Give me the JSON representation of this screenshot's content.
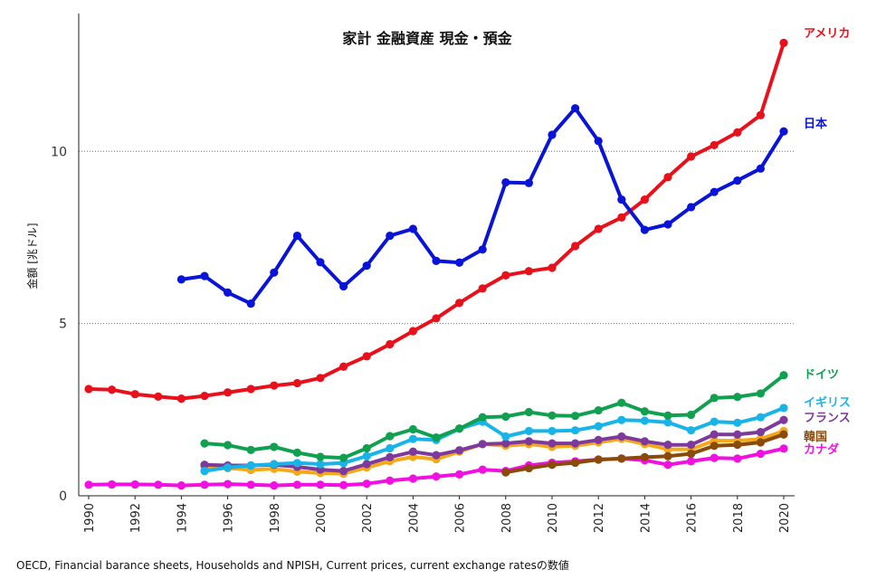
{
  "chart_data": {
    "type": "line",
    "title": "家計 金融資産 現金・預金",
    "ylabel": "金額 [兆ドル]",
    "xlabel": "",
    "xlim": [
      1990,
      2020
    ],
    "ylim": [
      0,
      14
    ],
    "yticks": [
      0,
      5,
      10
    ],
    "xticks": [
      1990,
      1992,
      1994,
      1996,
      1998,
      2000,
      2002,
      2004,
      2006,
      2008,
      2010,
      2012,
      2014,
      2016,
      2018,
      2020
    ],
    "grid": "horizontal-dotted",
    "legend": "right-end-labels",
    "series": [
      {
        "name": "アメリカ",
        "color": "#e8101a",
        "x": [
          1990,
          1991,
          1992,
          1993,
          1994,
          1995,
          1996,
          1997,
          1998,
          1999,
          2000,
          2001,
          2002,
          2003,
          2004,
          2005,
          2006,
          2007,
          2008,
          2009,
          2010,
          2011,
          2012,
          2013,
          2014,
          2015,
          2016,
          2017,
          2018,
          2019,
          2020
        ],
        "y": [
          3.1,
          3.08,
          2.95,
          2.88,
          2.82,
          2.9,
          3.0,
          3.1,
          3.2,
          3.27,
          3.42,
          3.75,
          4.05,
          4.4,
          4.78,
          5.15,
          5.6,
          6.02,
          6.4,
          6.52,
          6.62,
          7.25,
          7.75,
          8.08,
          8.6,
          9.25,
          9.85,
          10.18,
          10.55,
          11.05,
          13.15
        ]
      },
      {
        "name": "日本",
        "color": "#0a14d8",
        "x": [
          1994,
          1995,
          1996,
          1997,
          1998,
          1999,
          2000,
          2001,
          2002,
          2003,
          2004,
          2005,
          2006,
          2007,
          2008,
          2009,
          2010,
          2011,
          2012,
          2013,
          2014,
          2015,
          2016,
          2017,
          2018,
          2019,
          2020
        ],
        "y": [
          6.28,
          6.38,
          5.9,
          5.58,
          6.48,
          7.55,
          6.78,
          6.08,
          6.68,
          7.55,
          7.75,
          6.82,
          6.77,
          7.15,
          9.1,
          9.08,
          10.48,
          11.25,
          10.3,
          8.6,
          7.72,
          7.88,
          8.38,
          8.82,
          9.15,
          9.5,
          10.58
        ]
      },
      {
        "name": "ドイツ",
        "color": "#10a050",
        "x": [
          1995,
          1996,
          1997,
          1998,
          1999,
          2000,
          2001,
          2002,
          2003,
          2004,
          2005,
          2006,
          2007,
          2008,
          2009,
          2010,
          2011,
          2012,
          2013,
          2014,
          2015,
          2016,
          2017,
          2018,
          2019,
          2020
        ],
        "y": [
          1.52,
          1.47,
          1.33,
          1.42,
          1.25,
          1.13,
          1.1,
          1.38,
          1.73,
          1.93,
          1.69,
          1.95,
          2.28,
          2.3,
          2.43,
          2.33,
          2.32,
          2.48,
          2.7,
          2.45,
          2.33,
          2.35,
          2.84,
          2.87,
          2.97,
          3.5
        ]
      },
      {
        "name": "イギリス",
        "color": "#18b4e8",
        "x": [
          1995,
          1996,
          1997,
          1998,
          1999,
          2000,
          2001,
          2002,
          2003,
          2004,
          2005,
          2006,
          2007,
          2008,
          2009,
          2010,
          2011,
          2012,
          2013,
          2014,
          2015,
          2016,
          2017,
          2018,
          2019,
          2020
        ],
        "y": [
          0.72,
          0.82,
          0.88,
          0.92,
          0.95,
          0.92,
          0.95,
          1.15,
          1.38,
          1.65,
          1.62,
          1.95,
          2.15,
          1.72,
          1.88,
          1.88,
          1.9,
          2.02,
          2.2,
          2.18,
          2.13,
          1.9,
          2.15,
          2.12,
          2.28,
          2.55
        ]
      },
      {
        "name": "フランス",
        "color": "#7d3a9c",
        "x": [
          1995,
          1996,
          1997,
          1998,
          1999,
          2000,
          2001,
          2002,
          2003,
          2004,
          2005,
          2006,
          2007,
          2008,
          2009,
          2010,
          2011,
          2012,
          2013,
          2014,
          2015,
          2016,
          2017,
          2018,
          2019,
          2020
        ],
        "y": [
          0.9,
          0.88,
          0.88,
          0.9,
          0.84,
          0.76,
          0.72,
          0.92,
          1.12,
          1.28,
          1.18,
          1.32,
          1.5,
          1.52,
          1.58,
          1.52,
          1.52,
          1.62,
          1.72,
          1.58,
          1.48,
          1.48,
          1.78,
          1.78,
          1.85,
          2.2
        ]
      },
      {
        "name": "韓国",
        "color": "#8a4a08",
        "x": [
          2008,
          2009,
          2010,
          2011,
          2012,
          2013,
          2014,
          2015,
          2016,
          2017,
          2018,
          2019,
          2020
        ],
        "y": [
          0.68,
          0.8,
          0.9,
          0.96,
          1.05,
          1.08,
          1.12,
          1.15,
          1.22,
          1.45,
          1.48,
          1.55,
          1.78
        ]
      },
      {
        "name": "カナダ",
        "color": "#f010e0",
        "x": [
          1990,
          1991,
          1992,
          1993,
          1994,
          1995,
          1996,
          1997,
          1998,
          1999,
          2000,
          2001,
          2002,
          2003,
          2004,
          2005,
          2006,
          2007,
          2008,
          2009,
          2010,
          2011,
          2012,
          2013,
          2014,
          2015,
          2016,
          2017,
          2018,
          2019,
          2020
        ],
        "y": [
          0.32,
          0.33,
          0.33,
          0.32,
          0.3,
          0.32,
          0.34,
          0.32,
          0.3,
          0.32,
          0.32,
          0.31,
          0.35,
          0.44,
          0.5,
          0.56,
          0.62,
          0.76,
          0.72,
          0.88,
          0.96,
          1.0,
          1.05,
          1.08,
          1.03,
          0.9,
          1.0,
          1.1,
          1.08,
          1.22,
          1.37
        ]
      },
      {
        "name": "",
        "color": "#f5a818",
        "x": [
          1995,
          1996,
          1997,
          1998,
          1999,
          2000,
          2001,
          2002,
          2003,
          2004,
          2005,
          2006,
          2007,
          2008,
          2009,
          2010,
          2011,
          2012,
          2013,
          2014,
          2015,
          2016,
          2017,
          2018,
          2019,
          2020
        ],
        "y": [
          0.85,
          0.8,
          0.75,
          0.78,
          0.7,
          0.66,
          0.64,
          0.82,
          1.0,
          1.13,
          1.06,
          1.28,
          1.5,
          1.45,
          1.5,
          1.42,
          1.45,
          1.55,
          1.65,
          1.5,
          1.35,
          1.35,
          1.6,
          1.6,
          1.65,
          1.88
        ]
      }
    ],
    "source": "OECD, Financial barance sheets, Households and NPISH, Current prices, current exchange ratesの数値"
  }
}
